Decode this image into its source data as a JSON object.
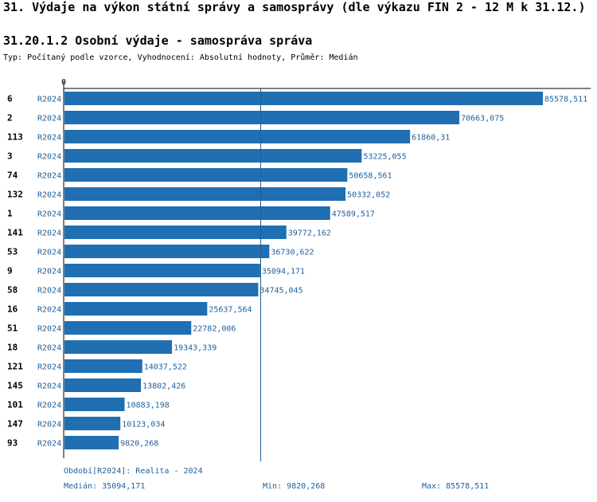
{
  "header": {
    "title": "31. Výdaje na výkon státní správy a samosprávy (dle výkazu FIN 2 - 12 M k 31.12.)",
    "subtitle": "31.20.1.2 Osobní výdaje - samospráva správa",
    "meta": "Typ: Počítaný podle vzorce, Vyhodnocení: Absolutní hodnoty, Průměr: Medián"
  },
  "colors": {
    "bar": "#1f6fb2",
    "label": "#1f5f9c",
    "axis": "#000000",
    "median_line": "#1f5f9c"
  },
  "chart_data": {
    "type": "bar",
    "orientation": "horizontal",
    "xlim": [
      0,
      85578.511
    ],
    "x_tick_label": "0",
    "median": 35094.171,
    "series": [
      {
        "period": "R2024",
        "categories": [
          "6",
          "2",
          "113",
          "3",
          "74",
          "132",
          "1",
          "141",
          "53",
          "9",
          "58",
          "16",
          "51",
          "18",
          "121",
          "145",
          "101",
          "147",
          "93"
        ],
        "values": [
          85578.511,
          70663.075,
          61860.31,
          53225.055,
          50658.561,
          50332.052,
          47589.517,
          39772.162,
          36730.622,
          35094.171,
          34745.045,
          25637.564,
          22782.006,
          19343.339,
          14037.522,
          13802.426,
          10883.198,
          10123.034,
          9820.268
        ],
        "value_labels": [
          "85578,511",
          "70663,075",
          "61860,31",
          "53225,055",
          "50658,561",
          "50332,052",
          "47589,517",
          "39772,162",
          "36730,622",
          "35094,171",
          "34745,045",
          "25637,564",
          "22782,006",
          "19343,339",
          "14037,522",
          "13802,426",
          "10883,198",
          "10123,034",
          "9820,268"
        ]
      }
    ]
  },
  "footer": {
    "period": "Období[R2024]: Realita - 2024",
    "median": "Medián: 35094,171",
    "min": "Min: 9820,268",
    "max": "Max: 85578,511"
  }
}
